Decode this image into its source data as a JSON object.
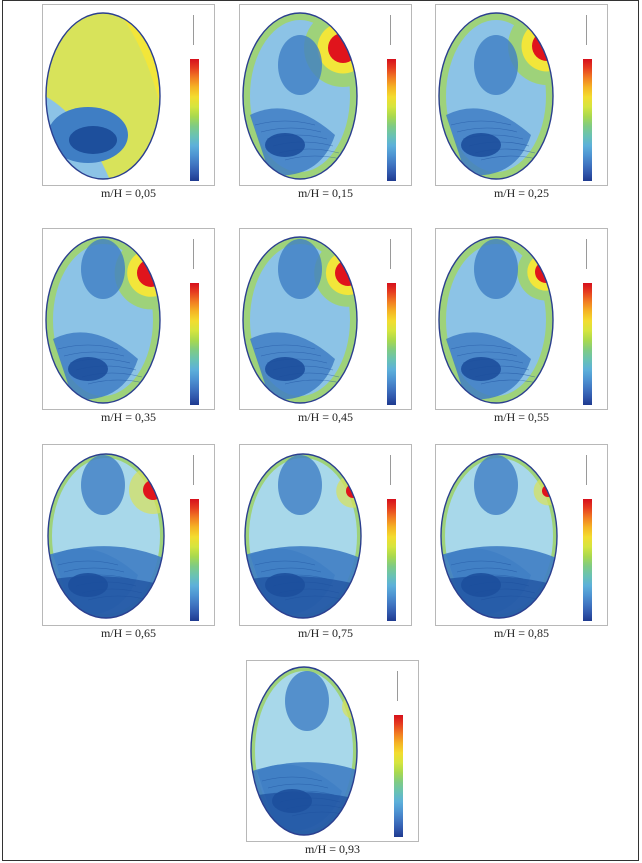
{
  "figure": {
    "panels": [
      {
        "caption": "m/H = 0,05",
        "hot_spot": 0
      },
      {
        "caption": "m/H = 0,15",
        "hot_spot": 1
      },
      {
        "caption": "m/H = 0,25",
        "hot_spot": 1
      },
      {
        "caption": "m/H = 0,35",
        "hot_spot": 1
      },
      {
        "caption": "m/H = 0,45",
        "hot_spot": 1
      },
      {
        "caption": "m/H = 0,55",
        "hot_spot": 1
      },
      {
        "caption": "m/H = 0,65",
        "hot_spot": 1
      },
      {
        "caption": "m/H = 0,75",
        "hot_spot": 1
      },
      {
        "caption": "m/H = 0,85",
        "hot_spot": 1
      },
      {
        "caption": "m/H = 0,93",
        "hot_spot": 1
      }
    ],
    "colors": {
      "deep_blue": "#1d4f9c",
      "blue": "#3f7ec4",
      "light_blue": "#8cc3e6",
      "cyan": "#a8d8ea",
      "green": "#9ed27a",
      "yellow_green": "#d8e35a",
      "yellow": "#f2e63a",
      "red": "#e0141c",
      "outline": "#2b3f8f"
    }
  }
}
